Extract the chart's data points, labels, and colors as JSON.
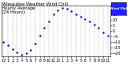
{
  "title": "Milwaukee Weather Wind Chill\nHourly Average\n(24 Hours)",
  "hours": [
    0,
    1,
    2,
    3,
    4,
    5,
    6,
    7,
    8,
    9,
    10,
    11,
    12,
    13,
    14,
    15,
    16,
    17,
    18,
    19,
    20,
    21,
    22,
    23
  ],
  "wind_chill": [
    -10,
    -13,
    -16,
    -19,
    -21,
    -20,
    -17,
    -11,
    -4,
    3,
    9,
    15,
    19,
    21,
    20,
    18,
    15,
    13,
    11,
    9,
    6,
    3,
    -1,
    -4
  ],
  "dot_color": "#0000cc",
  "legend_bg": "#2222ff",
  "legend_text": "Wind Chill",
  "bg_color": "#ffffff",
  "grid_color": "#888888",
  "ylim": [
    -23,
    23
  ],
  "yticks": [
    -20,
    -15,
    -10,
    -5,
    0,
    5,
    10,
    15,
    20
  ],
  "xtick_labels": [
    "12",
    "1",
    "2",
    "3",
    "4",
    "5",
    "6",
    "7",
    "8",
    "9",
    "10",
    "11",
    "12",
    "1",
    "2",
    "3",
    "4",
    "5",
    "6",
    "7",
    "8",
    "9",
    "10",
    "11"
  ],
  "title_fontsize": 4.0,
  "tick_fontsize": 3.5,
  "dot_size": 3
}
